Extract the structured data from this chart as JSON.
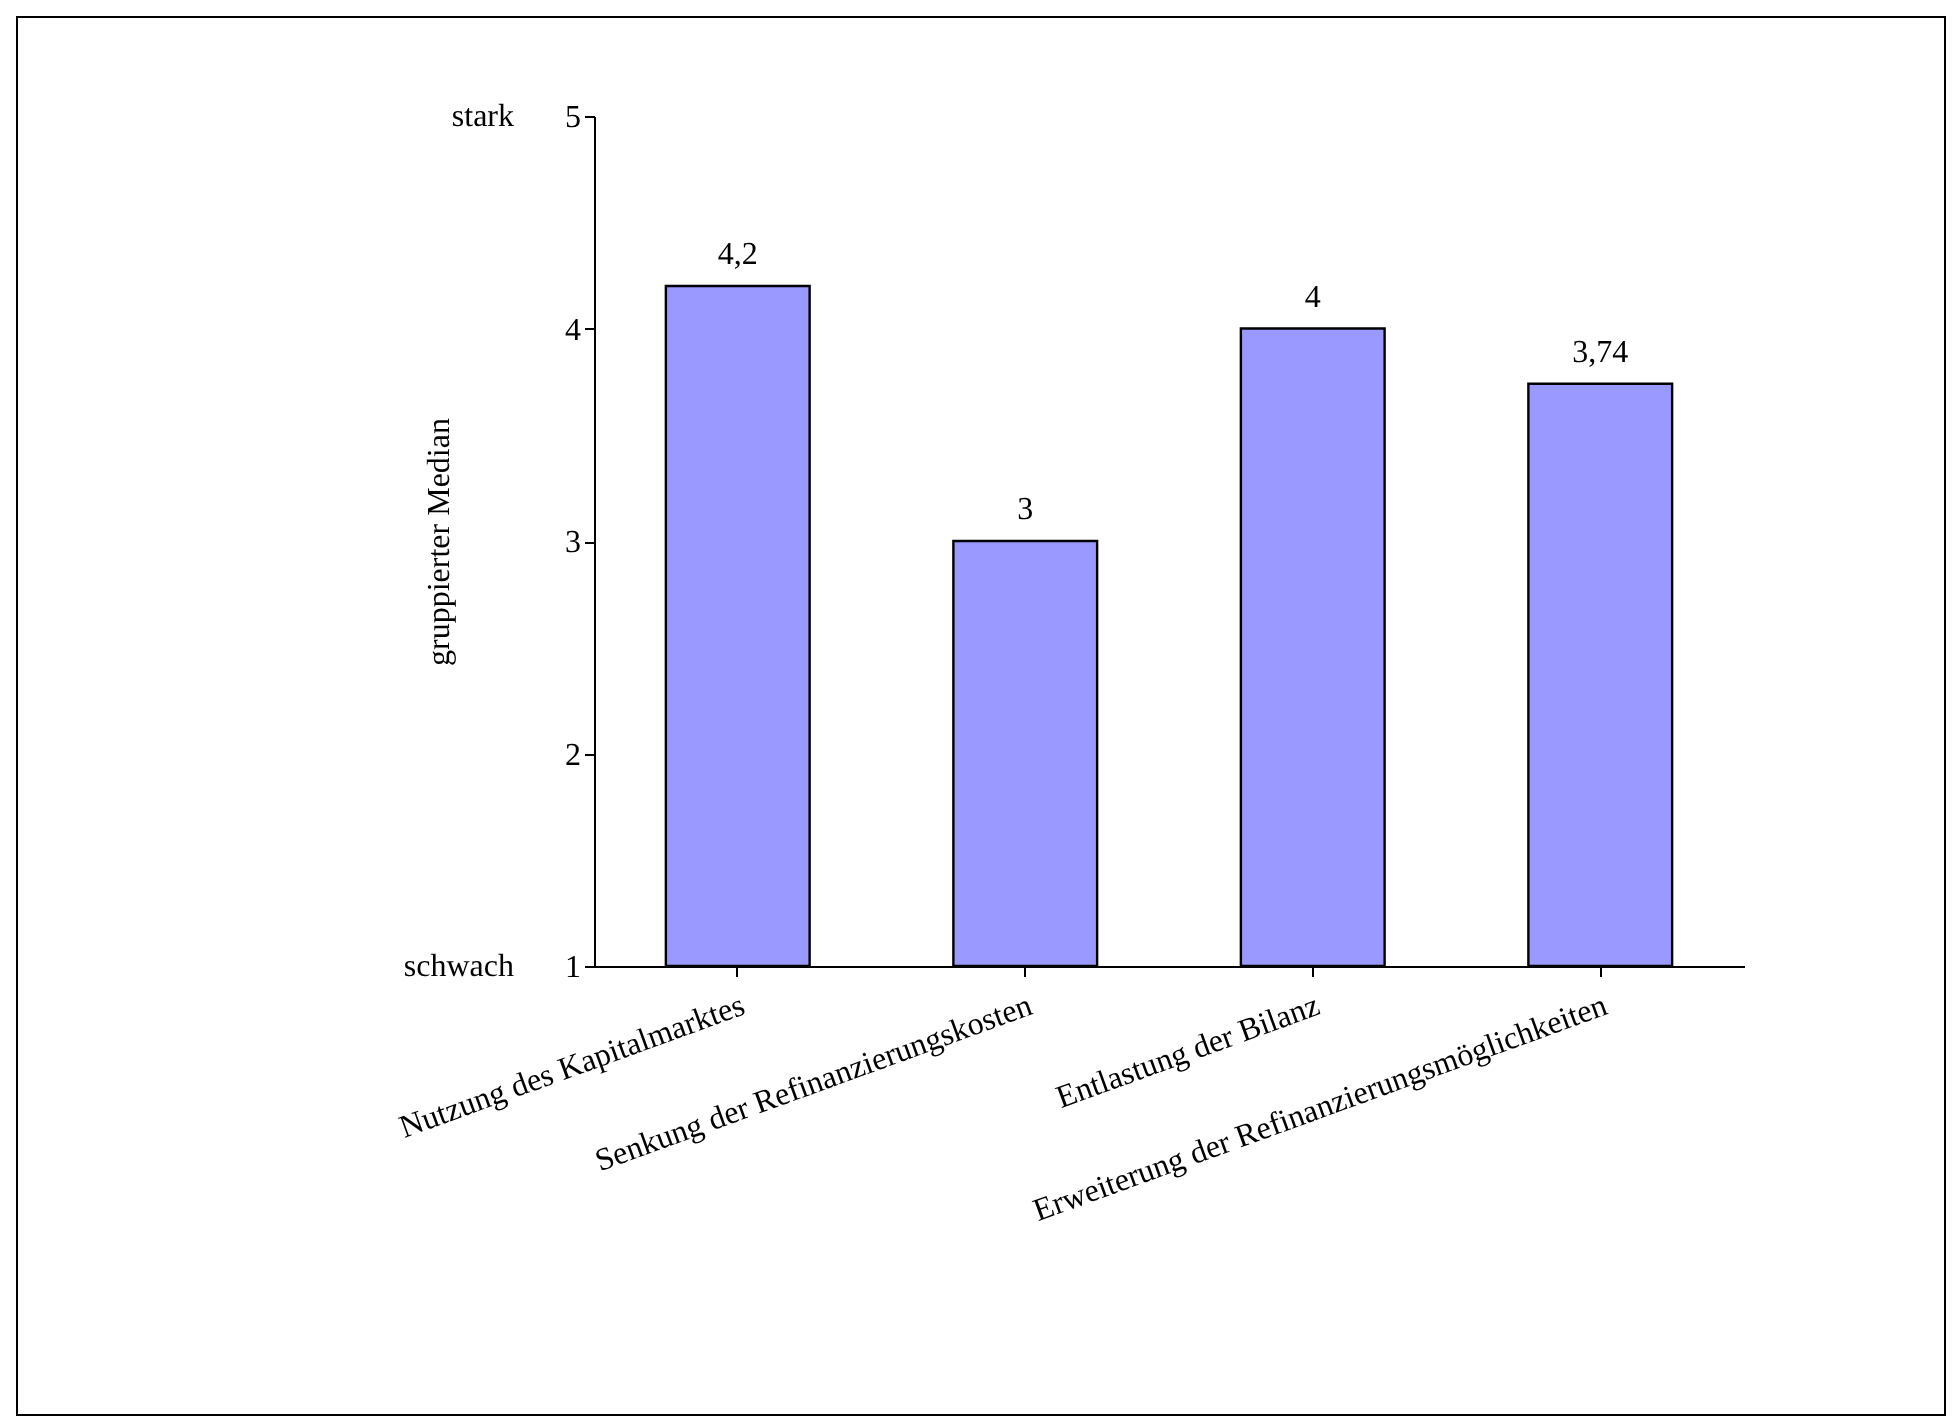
{
  "chart_data": {
    "type": "bar",
    "ylabel": "gruppierter Median",
    "categories": [
      "Nutzung  des Kapitalmarktes",
      "Senkung der  Refinanzierungskosten",
      "Entlastung der Bilanz",
      "Erweiterung der  Refinanzierungsmöglichkeiten"
    ],
    "values": [
      4.2,
      3,
      4,
      3.74
    ],
    "value_labels": [
      "4,2",
      "3",
      "4",
      "3,74"
    ],
    "color": "#9999ff",
    "ylim": [
      1,
      5
    ],
    "yticks": [
      1,
      2,
      3,
      4,
      5
    ],
    "grid": false,
    "annotations": [
      "stark",
      "schwach"
    ]
  }
}
